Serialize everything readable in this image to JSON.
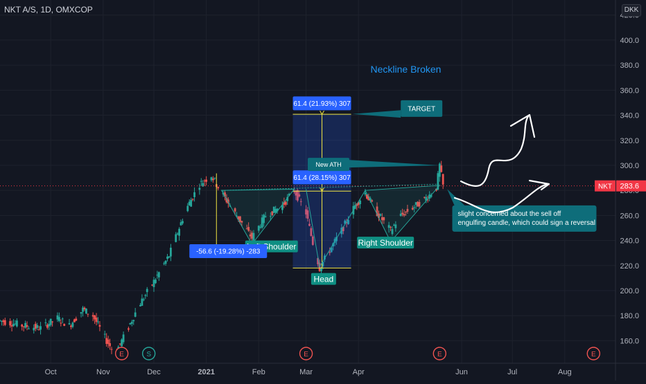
{
  "header": {
    "symbol_title": "NKT A/S, 1D, OMXCOP",
    "currency": "DKK"
  },
  "price_tag": {
    "symbol": "NKT",
    "value": "283.6"
  },
  "colors": {
    "background": "#131722",
    "up": "#26a69a",
    "down": "#ef5350",
    "measure": "#2962ff",
    "target_line": "#f0e442",
    "note_fill": "#0e6d7a",
    "annotation_text": "#2196f3",
    "last_price": "#f23645"
  },
  "chart_data": {
    "type": "candlestick",
    "title": "",
    "xlabel": "",
    "ylabel": "",
    "ylim": [
      142,
      432
    ],
    "x_range": [
      "2020-09-01",
      "2021-08-31"
    ],
    "grid": true,
    "y_ticks": [
      "160.0",
      "180.0",
      "200.0",
      "220.0",
      "240.0",
      "260.0",
      "280.0",
      "300.0",
      "320.0",
      "340.0",
      "360.0",
      "380.0",
      "400.0",
      "420.0"
    ],
    "x_ticks": [
      {
        "label": "Oct",
        "date": "2020-10-01"
      },
      {
        "label": "Nov",
        "date": "2020-11-01"
      },
      {
        "label": "Dec",
        "date": "2020-12-01"
      },
      {
        "label": "2021",
        "date": "2021-01-01"
      },
      {
        "label": "Feb",
        "date": "2021-02-01"
      },
      {
        "label": "Mar",
        "date": "2021-03-01"
      },
      {
        "label": "Apr",
        "date": "2021-04-01"
      },
      {
        "label": "Jun",
        "date": "2021-06-01"
      },
      {
        "label": "Jul",
        "date": "2021-07-01"
      },
      {
        "label": "Aug",
        "date": "2021-08-01"
      }
    ],
    "price_path": [
      [
        "2020-09-01",
        176
      ],
      [
        "2020-09-15",
        172
      ],
      [
        "2020-09-25",
        170
      ],
      [
        "2020-10-05",
        178
      ],
      [
        "2020-10-12",
        172
      ],
      [
        "2020-10-20",
        185
      ],
      [
        "2020-10-26",
        180
      ],
      [
        "2020-11-03",
        160
      ],
      [
        "2020-11-08",
        150
      ],
      [
        "2020-11-14",
        165
      ],
      [
        "2020-11-22",
        188
      ],
      [
        "2020-11-30",
        205
      ],
      [
        "2020-12-10",
        228
      ],
      [
        "2020-12-20",
        265
      ],
      [
        "2020-12-28",
        285
      ],
      [
        "2021-01-04",
        292
      ],
      [
        "2021-01-10",
        278
      ],
      [
        "2021-01-20",
        258
      ],
      [
        "2021-01-28",
        242
      ],
      [
        "2021-02-05",
        260
      ],
      [
        "2021-02-15",
        268
      ],
      [
        "2021-02-22",
        280
      ],
      [
        "2021-03-01",
        262
      ],
      [
        "2021-03-05",
        238
      ],
      [
        "2021-03-09",
        218
      ],
      [
        "2021-03-14",
        230
      ],
      [
        "2021-03-22",
        248
      ],
      [
        "2021-03-30",
        268
      ],
      [
        "2021-04-05",
        278
      ],
      [
        "2021-04-12",
        262
      ],
      [
        "2021-04-20",
        248
      ],
      [
        "2021-04-26",
        260
      ],
      [
        "2021-05-05",
        268
      ],
      [
        "2021-05-12",
        275
      ],
      [
        "2021-05-17",
        282
      ],
      [
        "2021-05-19",
        300
      ],
      [
        "2021-05-21",
        283.6
      ]
    ],
    "pattern_labels": [
      "Left Shoulder",
      "Head",
      "Right Shoulder"
    ],
    "measurements": [
      {
        "label": "-56.6 (-19.28%) -283",
        "from": 293.6,
        "to": 237
      },
      {
        "label": "61.4 (28.15%) 307",
        "from": 218,
        "to": 279.4
      },
      {
        "label": "61.4 (21.93%) 307",
        "from": 279.4,
        "to": 340.8
      }
    ],
    "annotations": {
      "headline": "Neckline Broken",
      "target": "TARGET",
      "new_ath": "New ATH",
      "note": [
        "slight concerned about the sell off",
        "engulfing candle, which could sign a reversal"
      ]
    },
    "events": [
      {
        "kind": "E",
        "date": "2020-11-12"
      },
      {
        "kind": "S",
        "date": "2020-11-28"
      },
      {
        "kind": "E",
        "date": "2021-03-01"
      },
      {
        "kind": "E",
        "date": "2021-05-19"
      },
      {
        "kind": "E",
        "date": "2021-08-18"
      }
    ]
  }
}
